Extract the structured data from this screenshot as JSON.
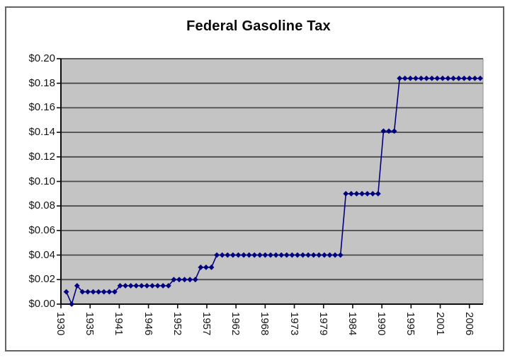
{
  "chart_data": {
    "type": "line",
    "title": "Federal Gasoline Tax",
    "xlabel": "",
    "ylabel": "",
    "legend": "none",
    "grid": "horizontal",
    "marker": "diamond",
    "series_color": "#000080",
    "plot_background": "#c4c4c4",
    "gridline_color": "#4a4a4a",
    "axis_color": "#0d0d0d",
    "tick_text_color": "#161616",
    "frame_border_color": "#636363",
    "ylim": [
      0.0,
      0.2
    ],
    "y_tick_labels": [
      "$0.00",
      "$0.02",
      "$0.04",
      "$0.06",
      "$0.08",
      "$0.10",
      "$0.12",
      "$0.14",
      "$0.16",
      "$0.18",
      "$0.20"
    ],
    "x_tick_labels": [
      "1930",
      "1935",
      "1941",
      "1946",
      "1952",
      "1957",
      "1962",
      "1968",
      "1973",
      "1979",
      "1984",
      "1990",
      "1995",
      "2001",
      "2006"
    ],
    "x_range_years": [
      1930,
      2008
    ],
    "points": [
      [
        1931,
        0.01
      ],
      [
        1932,
        0.0
      ],
      [
        1933,
        0.015
      ],
      [
        1934,
        0.01
      ],
      [
        1935,
        0.01
      ],
      [
        1936,
        0.01
      ],
      [
        1937,
        0.01
      ],
      [
        1938,
        0.01
      ],
      [
        1939,
        0.01
      ],
      [
        1940,
        0.01
      ],
      [
        1941,
        0.015
      ],
      [
        1942,
        0.015
      ],
      [
        1943,
        0.015
      ],
      [
        1944,
        0.015
      ],
      [
        1945,
        0.015
      ],
      [
        1946,
        0.015
      ],
      [
        1947,
        0.015
      ],
      [
        1948,
        0.015
      ],
      [
        1949,
        0.015
      ],
      [
        1950,
        0.015
      ],
      [
        1951,
        0.02
      ],
      [
        1952,
        0.02
      ],
      [
        1953,
        0.02
      ],
      [
        1954,
        0.02
      ],
      [
        1955,
        0.02
      ],
      [
        1956,
        0.03
      ],
      [
        1957,
        0.03
      ],
      [
        1958,
        0.03
      ],
      [
        1959,
        0.04
      ],
      [
        1960,
        0.04
      ],
      [
        1961,
        0.04
      ],
      [
        1962,
        0.04
      ],
      [
        1963,
        0.04
      ],
      [
        1964,
        0.04
      ],
      [
        1965,
        0.04
      ],
      [
        1966,
        0.04
      ],
      [
        1967,
        0.04
      ],
      [
        1968,
        0.04
      ],
      [
        1969,
        0.04
      ],
      [
        1970,
        0.04
      ],
      [
        1971,
        0.04
      ],
      [
        1972,
        0.04
      ],
      [
        1973,
        0.04
      ],
      [
        1974,
        0.04
      ],
      [
        1975,
        0.04
      ],
      [
        1976,
        0.04
      ],
      [
        1977,
        0.04
      ],
      [
        1978,
        0.04
      ],
      [
        1979,
        0.04
      ],
      [
        1980,
        0.04
      ],
      [
        1981,
        0.04
      ],
      [
        1982,
        0.04
      ],
      [
        1983,
        0.09
      ],
      [
        1984,
        0.09
      ],
      [
        1985,
        0.09
      ],
      [
        1986,
        0.09
      ],
      [
        1987,
        0.09
      ],
      [
        1988,
        0.09
      ],
      [
        1989,
        0.09
      ],
      [
        1990,
        0.141
      ],
      [
        1991,
        0.141
      ],
      [
        1992,
        0.141
      ],
      [
        1993,
        0.184
      ],
      [
        1994,
        0.184
      ],
      [
        1995,
        0.184
      ],
      [
        1996,
        0.184
      ],
      [
        1997,
        0.184
      ],
      [
        1998,
        0.184
      ],
      [
        1999,
        0.184
      ],
      [
        2000,
        0.184
      ],
      [
        2001,
        0.184
      ],
      [
        2002,
        0.184
      ],
      [
        2003,
        0.184
      ],
      [
        2004,
        0.184
      ],
      [
        2005,
        0.184
      ],
      [
        2006,
        0.184
      ],
      [
        2007,
        0.184
      ],
      [
        2008,
        0.184
      ]
    ]
  }
}
